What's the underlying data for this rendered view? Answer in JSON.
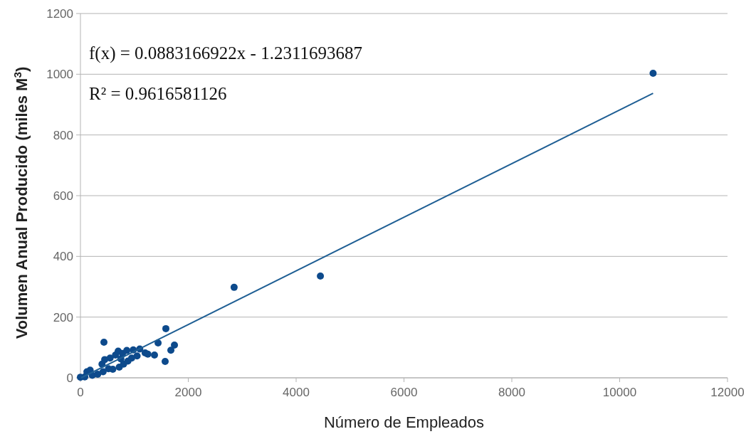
{
  "chart_data": {
    "type": "scatter",
    "xlabel": "Número de Empleados",
    "ylabel": "Volumen Anual Producido (miles M$^{3}$)",
    "annotations": [
      "f(x) = 0.0883166922x - 1.2311693687",
      "R² = 0.9616581126"
    ],
    "xlim": [
      0,
      12000
    ],
    "xticks": [
      0,
      2000,
      4000,
      6000,
      8000,
      10000,
      12000
    ],
    "ylim": [
      0,
      1200
    ],
    "yticks": [
      0,
      200,
      400,
      600,
      800,
      1000,
      1200
    ],
    "grid": "y",
    "marker": "circle",
    "series": [
      {
        "color": "#0d4a8c",
        "x": [
          0,
          80,
          120,
          180,
          220,
          320,
          400,
          420,
          436,
          450,
          520,
          550,
          600,
          650,
          700,
          720,
          750,
          780,
          800,
          860,
          880,
          950,
          980,
          1050,
          1100,
          1200,
          1250,
          1373,
          1440,
          1571,
          1584,
          1677,
          1743,
          2850,
          4450,
          10620
        ],
        "values": [
          2,
          3,
          20,
          25,
          8,
          12,
          45,
          20,
          117,
          60,
          30,
          65,
          28,
          75,
          88,
          35,
          62,
          80,
          45,
          90,
          55,
          65,
          92,
          72,
          95,
          82,
          78,
          75,
          115,
          54,
          162,
          91,
          108,
          298,
          335,
          1003
        ]
      },
      {
        "type": "line",
        "color": "#1f5f94",
        "marker": "none",
        "x": [
          14,
          10620
        ],
        "values": [
          0,
          937
        ]
      }
    ]
  }
}
